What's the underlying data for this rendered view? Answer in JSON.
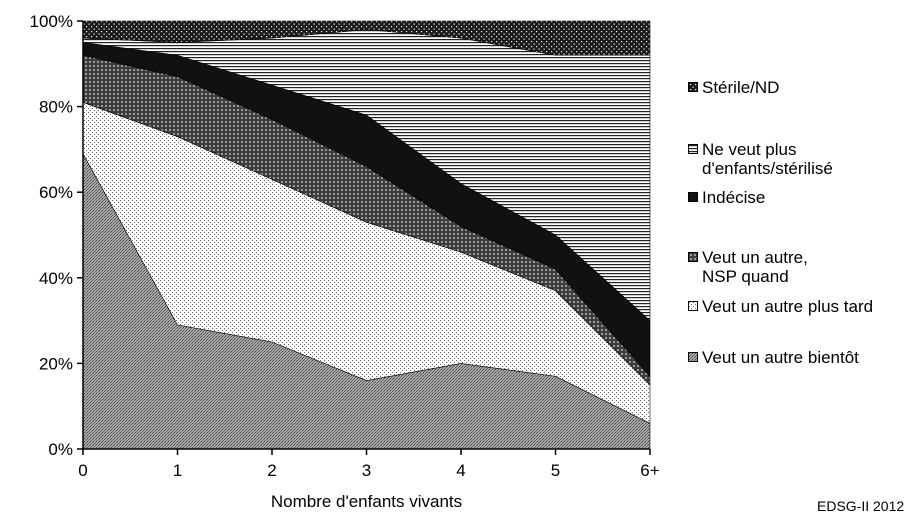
{
  "source_note": "EDSG-II 2012",
  "chart_data": {
    "type": "area",
    "stacked": true,
    "categories": [
      "0",
      "1",
      "2",
      "3",
      "4",
      "5",
      "6+"
    ],
    "xlabel": "Nombre d'enfants vivants",
    "ylabel": "",
    "ylim": [
      0,
      100
    ],
    "y_ticks": [
      "0%",
      "20%",
      "40%",
      "60%",
      "80%",
      "100%"
    ],
    "grid": false,
    "legend_position": "right",
    "series": [
      {
        "name": "Veut un autre bientôt",
        "pattern": "crosshatch-dense",
        "values": [
          69,
          29,
          25,
          16,
          20,
          17,
          6
        ]
      },
      {
        "name": "Veut un autre plus tard",
        "pattern": "fine-dots",
        "values": [
          12,
          44,
          38,
          37,
          26,
          20,
          9
        ]
      },
      {
        "name": "Veut un autre,\nNSP quand",
        "pattern": "grid",
        "values": [
          11,
          14,
          14,
          13,
          6,
          5,
          2
        ]
      },
      {
        "name": "Indécise",
        "pattern": "solid-black",
        "values": [
          3,
          5,
          8,
          12,
          10,
          8,
          13
        ]
      },
      {
        "name": "Ne veut plus\nd'enfants/stérilisé",
        "pattern": "horizontal-lines",
        "values": [
          1,
          3,
          11,
          20,
          34,
          42,
          62
        ]
      },
      {
        "name": "Stérile/ND",
        "pattern": "dots-on-black",
        "values": [
          4,
          5,
          4,
          2,
          4,
          8,
          8
        ]
      }
    ]
  }
}
